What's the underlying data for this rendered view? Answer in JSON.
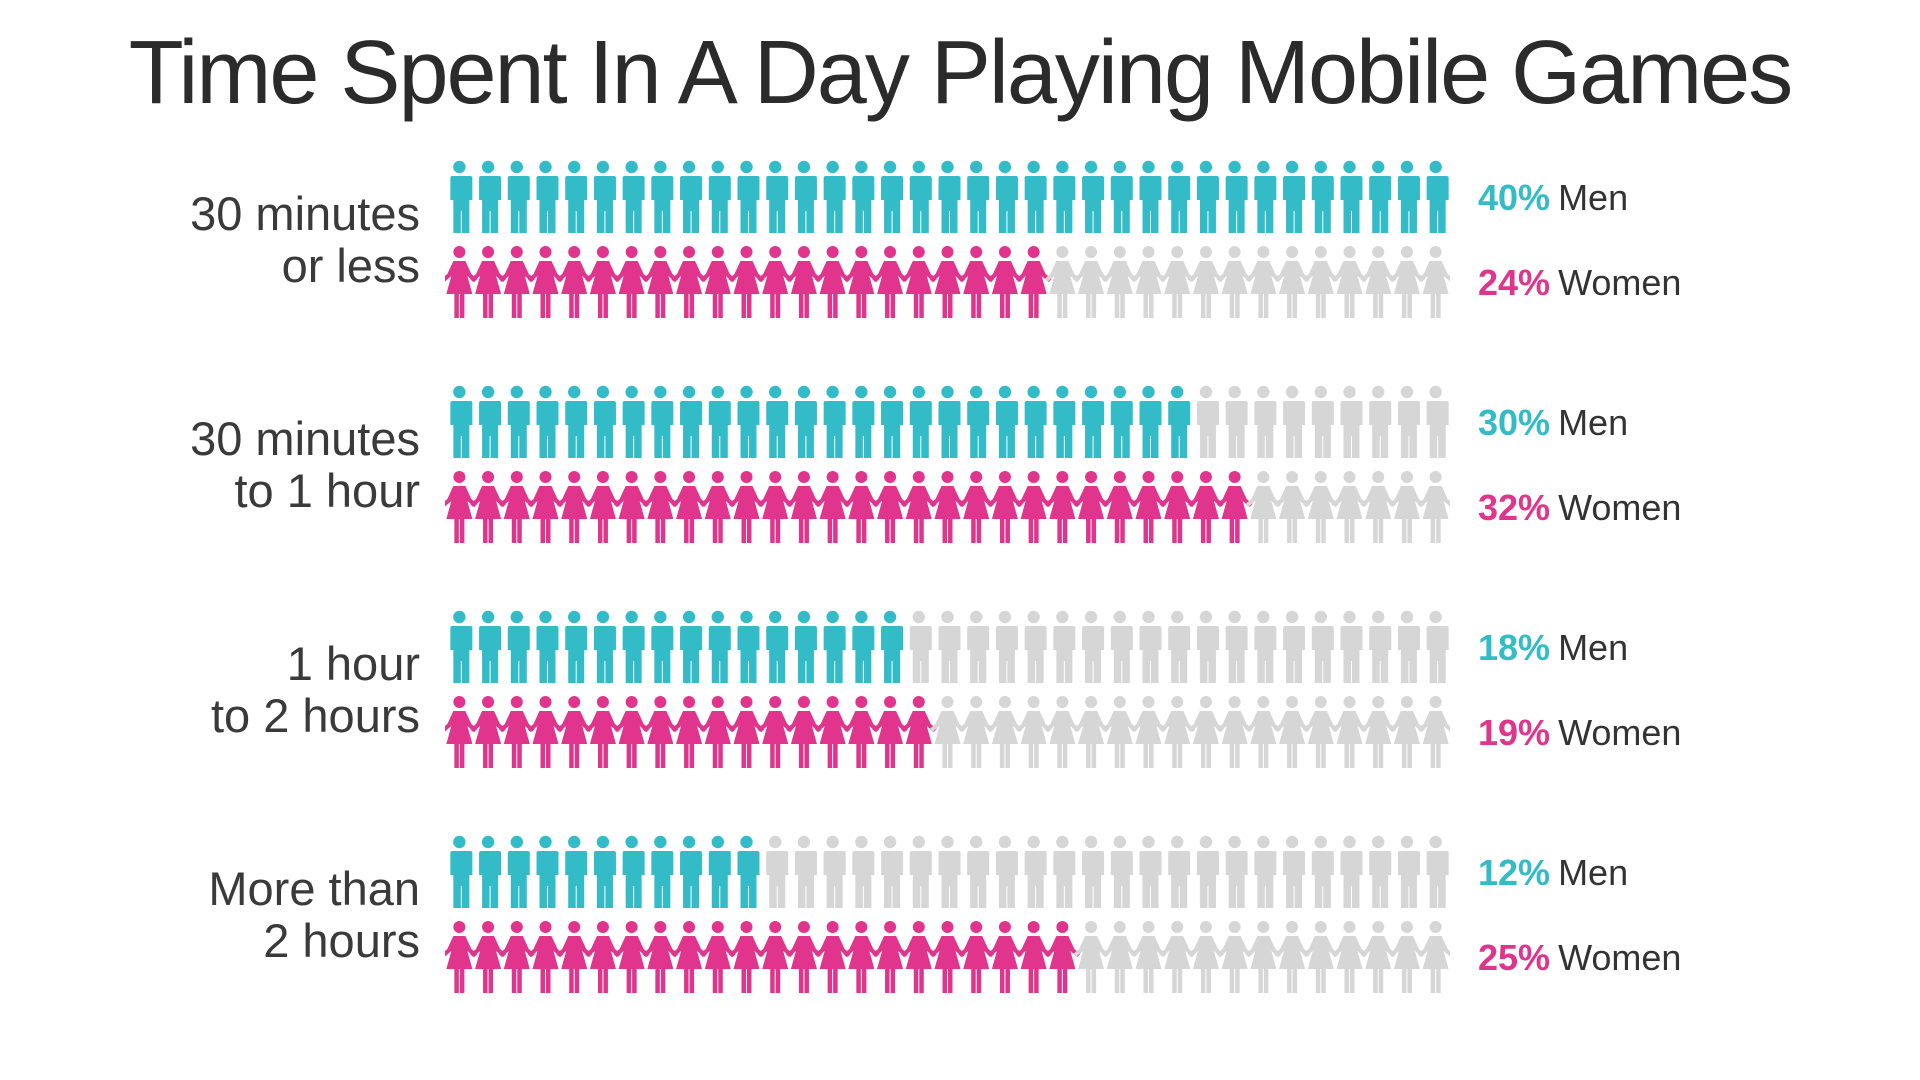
{
  "title": "Time Spent In A Day Playing Mobile Games",
  "colors": {
    "men": "#33bcc8",
    "women": "#e0348d",
    "inactive": "#d6d6d6"
  },
  "icons": {
    "men": "man-icon",
    "women": "woman-icon"
  },
  "chart_data": {
    "type": "bar",
    "icons_per_row": 35,
    "categories": [
      [
        "30 minutes",
        "or less"
      ],
      [
        "30 minutes",
        "to 1 hour"
      ],
      [
        "1 hour",
        "to 2 hours"
      ],
      [
        "More than",
        "2 hours"
      ]
    ],
    "series": [
      {
        "name": "Men",
        "values": [
          40,
          30,
          18,
          12
        ],
        "labels": [
          "40%",
          "30%",
          "18%",
          "12%"
        ]
      },
      {
        "name": "Women",
        "values": [
          24,
          32,
          19,
          25
        ],
        "labels": [
          "24%",
          "32%",
          "19%",
          "25%"
        ]
      }
    ],
    "ylim": [
      0,
      40
    ]
  }
}
